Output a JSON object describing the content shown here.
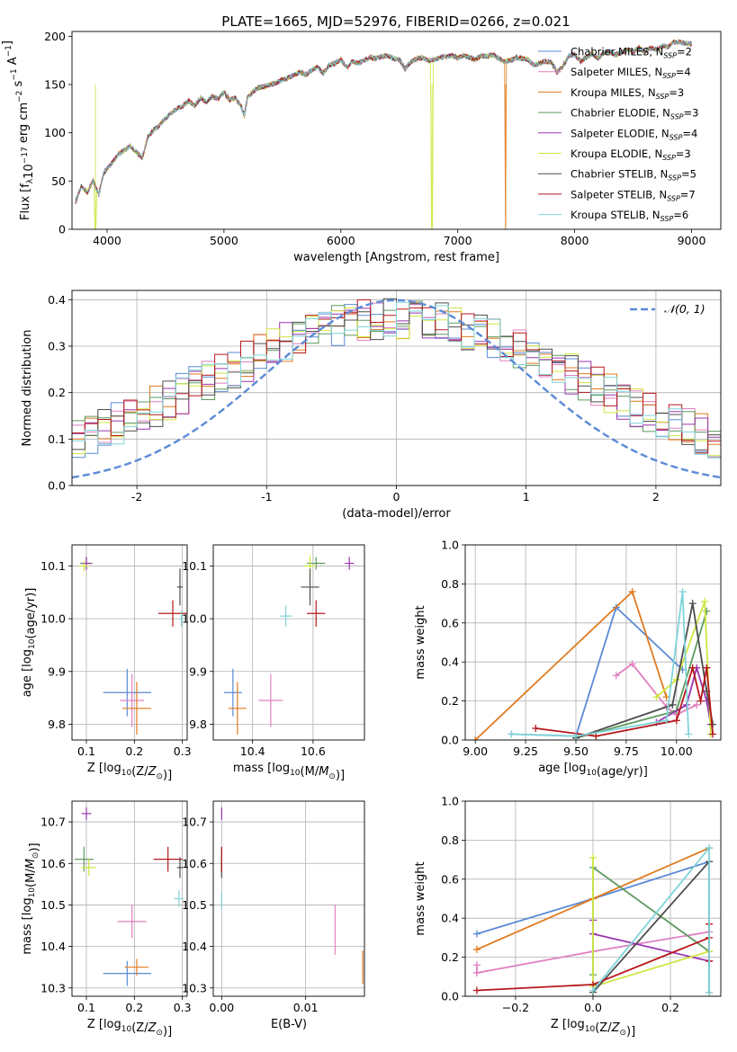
{
  "figure_title": "PLATE=1665, MJD=52976, FIBERID=0266, z=0.021",
  "series": [
    {
      "name": "Chabrier MILES",
      "nssp": "2",
      "color": "#5b8ad6"
    },
    {
      "name": "Salpeter MILES",
      "nssp": "4",
      "color": "#e07fc0"
    },
    {
      "name": "Kroupa MILES",
      "nssp": "3",
      "color": "#e07a1f"
    },
    {
      "name": "Chabrier ELODIE",
      "nssp": "3",
      "color": "#5e9a5e"
    },
    {
      "name": "Salpeter ELODIE",
      "nssp": "4",
      "color": "#9a35b0"
    },
    {
      "name": "Kroupa ELODIE",
      "nssp": "3",
      "color": "#cfe640"
    },
    {
      "name": "Chabrier STELIB",
      "nssp": "5",
      "color": "#4d4d4d"
    },
    {
      "name": "Salpeter STELIB",
      "nssp": "7",
      "color": "#b5181c"
    },
    {
      "name": "Kroupa STELIB",
      "nssp": "6",
      "color": "#7fd4d8"
    }
  ],
  "chart_data": [
    {
      "id": "spectrum",
      "type": "line",
      "title": "PLATE=1665, MJD=52976, FIBERID=0266, z=0.021",
      "xlabel": "wavelength [Angstrom, rest frame]",
      "ylabel": "Flux [f_λ 10^-17 erg cm^-2 s^-1 A^-1]",
      "xlim": [
        3700,
        9250
      ],
      "ylim": [
        0,
        205
      ],
      "xticks": [
        4000,
        5000,
        6000,
        7000,
        8000,
        9000
      ],
      "yticks": [
        0,
        50,
        100,
        150,
        200
      ],
      "legend_position": "top-right",
      "x": [
        3730,
        3780,
        3830,
        3880,
        3930,
        3970,
        4000,
        4050,
        4100,
        4150,
        4200,
        4250,
        4300,
        4350,
        4400,
        4450,
        4500,
        4550,
        4600,
        4650,
        4700,
        4750,
        4800,
        4850,
        4900,
        4950,
        5000,
        5050,
        5100,
        5150,
        5175,
        5200,
        5250,
        5300,
        5350,
        5400,
        5450,
        5500,
        5550,
        5600,
        5650,
        5700,
        5750,
        5800,
        5850,
        5900,
        5950,
        6000,
        6050,
        6100,
        6150,
        6200,
        6250,
        6300,
        6350,
        6400,
        6450,
        6500,
        6550,
        6600,
        6650,
        6700,
        6750,
        6800,
        6850,
        6900,
        6950,
        7000,
        7050,
        7100,
        7150,
        7200,
        7250,
        7300,
        7350,
        7400,
        7450,
        7500,
        7550,
        7600,
        7650,
        7700,
        7750,
        7800,
        7850,
        7900,
        7950,
        8000,
        8050,
        8100,
        8150,
        8200,
        8250,
        8300,
        8350,
        8400,
        8450,
        8500,
        8550,
        8600,
        8650,
        8700,
        8750,
        8800,
        8850,
        8900,
        8950,
        9000
      ],
      "flux": [
        28,
        45,
        38,
        50,
        36,
        58,
        63,
        70,
        78,
        82,
        86,
        80,
        74,
        96,
        103,
        108,
        115,
        121,
        125,
        128,
        133,
        128,
        136,
        132,
        138,
        135,
        142,
        134,
        136,
        126,
        118,
        136,
        143,
        147,
        148,
        150,
        152,
        155,
        157,
        160,
        163,
        160,
        165,
        168,
        162,
        170,
        172,
        176,
        168,
        174,
        172,
        175,
        178,
        177,
        179,
        180,
        177,
        176,
        166,
        174,
        177,
        178,
        175,
        176,
        178,
        179,
        180,
        178,
        180,
        178,
        176,
        180,
        179,
        181,
        177,
        174,
        175,
        178,
        177,
        176,
        170,
        172,
        174,
        173,
        163,
        169,
        180,
        181,
        174,
        178,
        182,
        177,
        183,
        184,
        181,
        183,
        186,
        184,
        188,
        184,
        188,
        186,
        190,
        189,
        194,
        194,
        193,
        192
      ],
      "drops": [
        {
          "series": 5,
          "x": 3900
        },
        {
          "series": 5,
          "x": 6780
        },
        {
          "series": 2,
          "x": 7410
        }
      ]
    },
    {
      "id": "residuals",
      "type": "histogram",
      "xlabel": "(data-model)/error",
      "ylabel": "Normed distribution",
      "xlim": [
        -2.5,
        2.5
      ],
      "ylim": [
        0,
        0.42
      ],
      "xticks": [
        -2,
        -1,
        0,
        1,
        2
      ],
      "yticks": [
        0.0,
        0.1,
        0.2,
        0.3,
        0.4
      ],
      "gaussian_label": "𝒩(0, 1)",
      "gaussian_color": "#5b8ad6",
      "legend_position": "top-right",
      "bin_start": -2.5,
      "bin_width": 0.1
    },
    {
      "id": "age_vs_Z",
      "type": "errorbar",
      "xlabel": "Z [log10(Z/Z⊙)]",
      "ylabel": "age [log10(age/yr)]",
      "xlim": [
        0.07,
        0.31
      ],
      "ylim": [
        9.77,
        10.14
      ],
      "xticks": [
        0.1,
        0.2,
        0.3
      ],
      "yticks": [
        9.8,
        9.9,
        10.0,
        10.1
      ],
      "points": [
        {
          "series": 0,
          "x": 0.185,
          "y": 9.86,
          "xerr": 0.05,
          "yerr": 0.045
        },
        {
          "series": 1,
          "x": 0.195,
          "y": 9.845,
          "xerr": 0.025,
          "yerr": 0.05
        },
        {
          "series": 2,
          "x": 0.205,
          "y": 9.83,
          "xerr": 0.03,
          "yerr": 0.05
        },
        {
          "series": 3,
          "x": 0.1,
          "y": 10.105,
          "xerr": 0.013,
          "yerr": 0.012
        },
        {
          "series": 4,
          "x": 0.1,
          "y": 10.105,
          "xerr": 0.01,
          "yerr": 0.012
        },
        {
          "series": 5,
          "x": 0.095,
          "y": 10.1,
          "xerr": 0.01,
          "yerr": 0.01
        },
        {
          "series": 6,
          "x": 0.295,
          "y": 10.06,
          "xerr": 0.006,
          "yerr": 0.035
        },
        {
          "series": 7,
          "x": 0.28,
          "y": 10.01,
          "xerr": 0.03,
          "yerr": 0.025
        },
        {
          "series": 8,
          "x": 0.298,
          "y": 10.0,
          "xerr": 0.004,
          "yerr": 0.015
        }
      ]
    },
    {
      "id": "age_vs_mass",
      "type": "errorbar",
      "xlabel": "mass [log10(M/M⊙)]",
      "ylabel": "",
      "xlim": [
        10.27,
        10.77
      ],
      "ylim": [
        9.77,
        10.14
      ],
      "xticks": [
        10.4,
        10.6
      ],
      "yticks": [
        9.8,
        9.9,
        10.0,
        10.1
      ],
      "points": [
        {
          "series": 0,
          "x": 10.335,
          "y": 9.86,
          "xerr": 0.03,
          "yerr": 0.045
        },
        {
          "series": 1,
          "x": 10.46,
          "y": 9.845,
          "xerr": 0.04,
          "yerr": 0.05
        },
        {
          "series": 2,
          "x": 10.35,
          "y": 9.83,
          "xerr": 0.03,
          "yerr": 0.05
        },
        {
          "series": 3,
          "x": 10.61,
          "y": 10.105,
          "xerr": 0.03,
          "yerr": 0.012
        },
        {
          "series": 4,
          "x": 10.72,
          "y": 10.105,
          "xerr": 0.015,
          "yerr": 0.012
        },
        {
          "series": 5,
          "x": 10.59,
          "y": 10.1,
          "xerr": 0.02,
          "yerr": 0.02
        },
        {
          "series": 6,
          "x": 10.59,
          "y": 10.06,
          "xerr": 0.03,
          "yerr": 0.035
        },
        {
          "series": 7,
          "x": 10.61,
          "y": 10.01,
          "xerr": 0.03,
          "yerr": 0.025
        },
        {
          "series": 8,
          "x": 10.51,
          "y": 10.005,
          "xerr": 0.02,
          "yerr": 0.02
        }
      ]
    },
    {
      "id": "mass_vs_Z",
      "type": "errorbar",
      "xlabel": "Z [log10(Z/Z⊙)]",
      "ylabel": "mass [log10(M/M⊙)]",
      "xlim": [
        0.07,
        0.31
      ],
      "ylim": [
        10.28,
        10.75
      ],
      "xticks": [
        0.1,
        0.2,
        0.3
      ],
      "yticks": [
        10.3,
        10.4,
        10.5,
        10.6,
        10.7
      ],
      "points": [
        {
          "series": 0,
          "x": 0.185,
          "y": 10.335,
          "xerr": 0.05,
          "yerr": 0.03
        },
        {
          "series": 1,
          "x": 0.195,
          "y": 10.46,
          "xerr": 0.03,
          "yerr": 0.04
        },
        {
          "series": 2,
          "x": 0.205,
          "y": 10.35,
          "xerr": 0.025,
          "yerr": 0.02
        },
        {
          "series": 3,
          "x": 0.095,
          "y": 10.61,
          "xerr": 0.02,
          "yerr": 0.03
        },
        {
          "series": 4,
          "x": 0.1,
          "y": 10.72,
          "xerr": 0.01,
          "yerr": 0.015
        },
        {
          "series": 5,
          "x": 0.105,
          "y": 10.59,
          "xerr": 0.015,
          "yerr": 0.02
        },
        {
          "series": 6,
          "x": 0.295,
          "y": 10.59,
          "xerr": 0.006,
          "yerr": 0.025
        },
        {
          "series": 7,
          "x": 0.27,
          "y": 10.61,
          "xerr": 0.03,
          "yerr": 0.03
        },
        {
          "series": 8,
          "x": 0.293,
          "y": 10.515,
          "xerr": 0.01,
          "yerr": 0.02
        }
      ]
    },
    {
      "id": "mass_vs_ebv",
      "type": "errorbar",
      "xlabel": "E(B-V)",
      "ylabel": "",
      "xlim": [
        -0.001,
        0.017
      ],
      "ylim": [
        10.28,
        10.75
      ],
      "xticks": [
        0.0,
        0.01
      ],
      "tick_labels": [
        "0.00",
        "0.01"
      ],
      "yticks": [
        10.3,
        10.4,
        10.5,
        10.6,
        10.7
      ],
      "points": [
        {
          "series": 0,
          "x": 0.0,
          "y": 10.61,
          "xerr": 0,
          "yerr": 0.03
        },
        {
          "series": 1,
          "x": 0.0135,
          "y": 10.44,
          "xerr": 0,
          "yerr": 0.06
        },
        {
          "series": 2,
          "x": 0.0168,
          "y": 10.35,
          "xerr": 0,
          "yerr": 0.04
        },
        {
          "series": 3,
          "x": 0.0,
          "y": 10.61,
          "xerr": 0,
          "yerr": 0.03
        },
        {
          "series": 4,
          "x": 0.0,
          "y": 10.72,
          "xerr": 0,
          "yerr": 0.015
        },
        {
          "series": 5,
          "x": 0.0,
          "y": 10.59,
          "xerr": 0,
          "yerr": 0.02
        },
        {
          "series": 6,
          "x": 0.0,
          "y": 10.59,
          "xerr": 0,
          "yerr": 0.025
        },
        {
          "series": 7,
          "x": 0.0,
          "y": 10.61,
          "xerr": 0,
          "yerr": 0.03
        },
        {
          "series": 8,
          "x": 0.0,
          "y": 10.51,
          "xerr": 0,
          "yerr": 0.02
        }
      ]
    },
    {
      "id": "weight_vs_age",
      "type": "line",
      "xlabel": "age [log10(age/yr)]",
      "ylabel": "mass weight",
      "xlim": [
        8.95,
        10.22
      ],
      "ylim": [
        0,
        1.0
      ],
      "xticks": [
        9.0,
        9.25,
        9.5,
        9.75,
        10.0
      ],
      "tick_labels": [
        "9.00",
        "9.25",
        "9.50",
        "9.75",
        "10.00"
      ],
      "yticks": [
        0.0,
        0.2,
        0.4,
        0.6,
        0.8,
        1.0
      ],
      "lines": [
        {
          "series": 0,
          "points": [
            [
              9.18,
              0.03
            ],
            [
              9.5,
              0.02
            ],
            [
              9.7,
              0.68
            ],
            [
              10.03,
              0.36
            ]
          ]
        },
        {
          "series": 1,
          "points": [
            [
              9.7,
              0.33
            ],
            [
              9.78,
              0.39
            ],
            [
              9.95,
              0.17
            ],
            [
              10.0,
              0.13
            ],
            [
              10.1,
              0.18
            ]
          ]
        },
        {
          "series": 2,
          "points": [
            [
              9.0,
              0.0
            ],
            [
              9.78,
              0.76
            ],
            [
              9.95,
              0.22
            ]
          ]
        },
        {
          "series": 3,
          "points": [
            [
              9.5,
              0.01
            ],
            [
              10.0,
              0.15
            ],
            [
              10.15,
              0.66
            ]
          ]
        },
        {
          "series": 4,
          "points": [
            [
              9.9,
              0.09
            ],
            [
              10.05,
              0.18
            ],
            [
              10.1,
              0.37
            ],
            [
              10.15,
              0.2
            ],
            [
              10.17,
              0.08
            ]
          ]
        },
        {
          "series": 5,
          "points": [
            [
              9.9,
              0.22
            ],
            [
              10.0,
              0.31
            ],
            [
              10.14,
              0.71
            ],
            [
              10.17,
              0.03
            ]
          ]
        },
        {
          "series": 6,
          "points": [
            [
              9.5,
              0.01
            ],
            [
              9.98,
              0.18
            ],
            [
              10.08,
              0.7
            ],
            [
              10.15,
              0.25
            ],
            [
              10.18,
              0.08
            ]
          ]
        },
        {
          "series": 7,
          "points": [
            [
              9.3,
              0.06
            ],
            [
              9.6,
              0.02
            ],
            [
              10.0,
              0.1
            ],
            [
              10.08,
              0.37
            ],
            [
              10.12,
              0.2
            ],
            [
              10.15,
              0.37
            ],
            [
              10.18,
              0.03
            ]
          ]
        },
        {
          "series": 8,
          "points": [
            [
              9.18,
              0.03
            ],
            [
              9.5,
              0.02
            ],
            [
              9.95,
              0.1
            ],
            [
              10.03,
              0.76
            ],
            [
              10.06,
              0.03
            ]
          ]
        }
      ]
    },
    {
      "id": "weight_vs_Z",
      "type": "line",
      "xlabel": "Z [log10(Z/Z⊙)]",
      "ylabel": "mass weight",
      "xlim": [
        -0.33,
        0.33
      ],
      "ylim": [
        0,
        1.0
      ],
      "xticks": [
        -0.2,
        0.0,
        0.2
      ],
      "tick_labels": [
        "−0.2",
        "0.0",
        "0.2"
      ],
      "yticks": [
        0.0,
        0.2,
        0.4,
        0.6,
        0.8,
        1.0
      ],
      "lines": [
        {
          "series": 0,
          "points": [
            [
              -0.3,
              0.32
            ],
            [
              0.0,
              0.5
            ],
            [
              0.3,
              0.69
            ]
          ]
        },
        {
          "series": 1,
          "points": [
            [
              -0.3,
              0.16
            ],
            [
              -0.3,
              0.12
            ],
            [
              0.0,
              0.23
            ],
            [
              0.3,
              0.33
            ]
          ]
        },
        {
          "series": 2,
          "points": [
            [
              -0.3,
              0.24
            ],
            [
              0.0,
              0.5
            ],
            [
              0.3,
              0.76
            ]
          ]
        },
        {
          "series": 3,
          "points": [
            [
              0.0,
              0.11
            ],
            [
              0.0,
              0.66
            ],
            [
              0.3,
              0.23
            ]
          ]
        },
        {
          "series": 4,
          "points": [
            [
              0.0,
              0.39
            ],
            [
              0.0,
              0.32
            ],
            [
              0.3,
              0.18
            ]
          ]
        },
        {
          "series": 5,
          "points": [
            [
              0.0,
              0.71
            ],
            [
              0.0,
              0.05
            ],
            [
              0.3,
              0.23
            ]
          ]
        },
        {
          "series": 6,
          "points": [
            [
              0.0,
              0.02
            ],
            [
              0.3,
              0.69
            ],
            [
              0.3,
              0.02
            ]
          ]
        },
        {
          "series": 7,
          "points": [
            [
              -0.3,
              0.03
            ],
            [
              0.0,
              0.06
            ],
            [
              0.3,
              0.3
            ],
            [
              0.3,
              0.37
            ],
            [
              0.3,
              0.18
            ]
          ]
        },
        {
          "series": 8,
          "points": [
            [
              0.0,
              0.03
            ],
            [
              0.3,
              0.76
            ],
            [
              0.3,
              0.02
            ]
          ]
        }
      ]
    }
  ]
}
